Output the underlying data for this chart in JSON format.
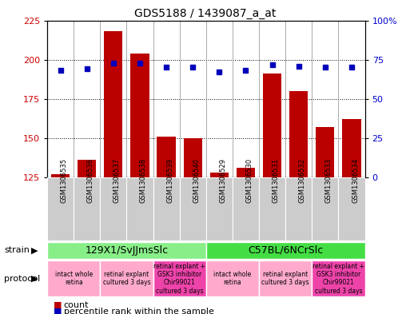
{
  "title": "GDS5188 / 1439087_a_at",
  "samples": [
    "GSM1306535",
    "GSM1306536",
    "GSM1306537",
    "GSM1306538",
    "GSM1306539",
    "GSM1306540",
    "GSM1306529",
    "GSM1306530",
    "GSM1306531",
    "GSM1306532",
    "GSM1306533",
    "GSM1306534"
  ],
  "count_values": [
    127,
    136,
    218,
    204,
    151,
    150,
    128,
    131,
    191,
    180,
    157,
    162
  ],
  "percentile_values": [
    68,
    69,
    73,
    73,
    70,
    70,
    67,
    68,
    72,
    71,
    70,
    70
  ],
  "ylim_left": [
    125,
    225
  ],
  "ylim_right": [
    0,
    100
  ],
  "yticks_left": [
    125,
    150,
    175,
    200,
    225
  ],
  "yticks_right": [
    0,
    25,
    50,
    75,
    100
  ],
  "bar_color": "#bb0000",
  "dot_color": "#0000bb",
  "background_color": "#ffffff",
  "strain_groups": [
    {
      "label": "129X1/SvJJmsSlc",
      "start": 0,
      "end": 6,
      "color": "#88ee88"
    },
    {
      "label": "C57BL/6NCrSlc",
      "start": 6,
      "end": 12,
      "color": "#44dd44"
    }
  ],
  "protocol_groups": [
    {
      "label": "intact whole\nretina",
      "start": 0,
      "end": 2,
      "color": "#ffaacc"
    },
    {
      "label": "retinal explant\ncultured 3 days",
      "start": 2,
      "end": 4,
      "color": "#ffaacc"
    },
    {
      "label": "retinal explant +\nGSK3 inhibitor\nChir99021\ncultured 3 days",
      "start": 4,
      "end": 6,
      "color": "#ee44aa"
    },
    {
      "label": "intact whole\nretina",
      "start": 6,
      "end": 8,
      "color": "#ffaacc"
    },
    {
      "label": "retinal explant\ncultured 3 days",
      "start": 8,
      "end": 10,
      "color": "#ffaacc"
    },
    {
      "label": "retinal explant +\nGSK3 inhibitor\nChir99021\ncultured 3 days",
      "start": 10,
      "end": 12,
      "color": "#ee44aa"
    }
  ],
  "count_label": "count",
  "percentile_label": "percentile rank within the sample",
  "strain_label": "strain",
  "protocol_label": "protocol",
  "ticklabel_color": "#cc0000",
  "right_tick_color": "#0000cc",
  "sample_box_color": "#cccccc",
  "grid_color": "black",
  "title_fontsize": 10,
  "bar_ytick_fontsize": 8,
  "pct_ytick_fontsize": 8,
  "sample_fontsize": 6,
  "strain_fontsize": 9,
  "proto_fontsize": 5.5,
  "label_fontsize": 8
}
